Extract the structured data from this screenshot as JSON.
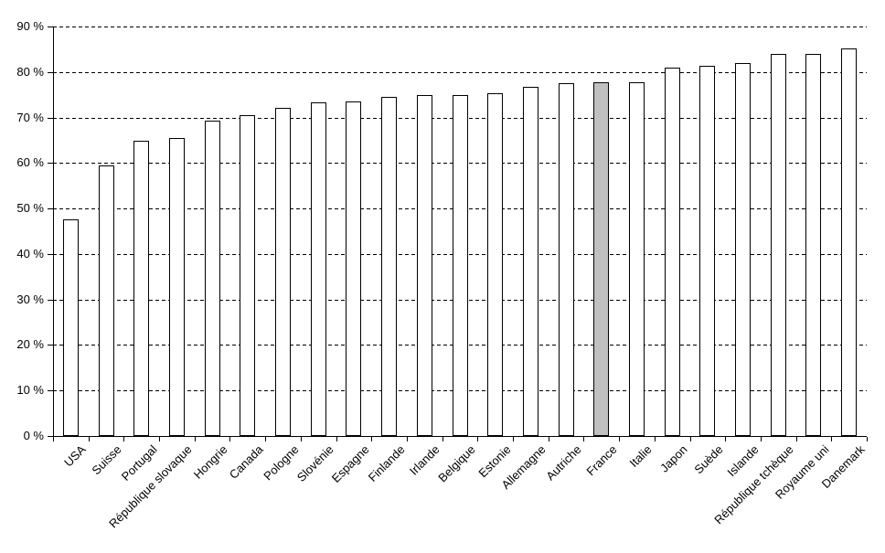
{
  "chart_data": {
    "type": "bar",
    "title": "",
    "xlabel": "",
    "ylabel": "",
    "legend": "none",
    "grid": {
      "horizontal": true,
      "style": "dashed",
      "color": "#000000"
    },
    "background": "#FFFFFF",
    "bar_fill": "#FFFFFF",
    "bar_border": "#000000",
    "highlight": {
      "category": "France",
      "color": "#C0C0C0"
    },
    "ylim": [
      0,
      90
    ],
    "ytick_step": 10,
    "y_tick_labels": [
      "0 %",
      "10 %",
      "20 %",
      "30 %",
      "40 %",
      "50 %",
      "60 %",
      "70 %",
      "80 %",
      "90 %"
    ],
    "categories": [
      "USA",
      "Suisse",
      "Portugal",
      "République slovaque",
      "Hongrie",
      "Canada",
      "Pologne",
      "Slovénie",
      "Espagne",
      "Finlande",
      "Irlande",
      "Belgique",
      "Estonie",
      "Allemagne",
      "Autriche",
      "France",
      "Italie",
      "Japon",
      "Suède",
      "Islande",
      "République tchèque",
      "Royaume uni",
      "Danemark"
    ],
    "values": [
      47.6,
      59.5,
      64.8,
      65.4,
      69.4,
      70.5,
      72.1,
      73.3,
      73.6,
      74.6,
      75,
      75,
      75.3,
      76.7,
      77.5,
      77.8,
      77.7,
      80.9,
      81.4,
      82,
      84,
      84,
      85.1
    ]
  }
}
